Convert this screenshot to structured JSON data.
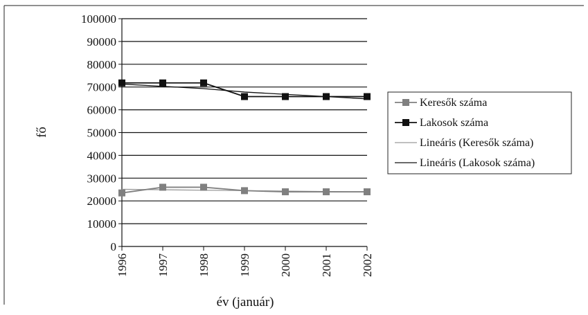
{
  "chart_data": {
    "type": "line",
    "title": "",
    "xlabel": "év (január)",
    "ylabel": "fő",
    "categories": [
      "1996",
      "1997",
      "1998",
      "1999",
      "2000",
      "2001",
      "2002"
    ],
    "ylim": [
      0,
      100000
    ],
    "yticks": [
      0,
      10000,
      20000,
      30000,
      40000,
      50000,
      60000,
      70000,
      80000,
      90000,
      100000
    ],
    "grid": true,
    "legend_position": "right",
    "series": [
      {
        "name": "Keresők száma",
        "values": [
          23500,
          26000,
          26000,
          24500,
          24000,
          24000,
          24000
        ],
        "color": "#808080",
        "marker": "square",
        "kind": "data"
      },
      {
        "name": "Lakosok száma",
        "values": [
          71800,
          71800,
          71800,
          65800,
          65800,
          65800,
          65800
        ],
        "color": "#111111",
        "marker": "square",
        "kind": "data"
      },
      {
        "name": "Lineáris (Keresők száma)",
        "values": [
          25100,
          24900,
          24700,
          24500,
          24300,
          24100,
          23900
        ],
        "color": "#9a9a9a",
        "marker": "none",
        "kind": "trend"
      },
      {
        "name": "Lineáris (Lakosok száma)",
        "values": [
          71300,
          70300,
          69300,
          67800,
          66800,
          65800,
          64800
        ],
        "color": "#111111",
        "marker": "none",
        "kind": "trend"
      }
    ]
  }
}
